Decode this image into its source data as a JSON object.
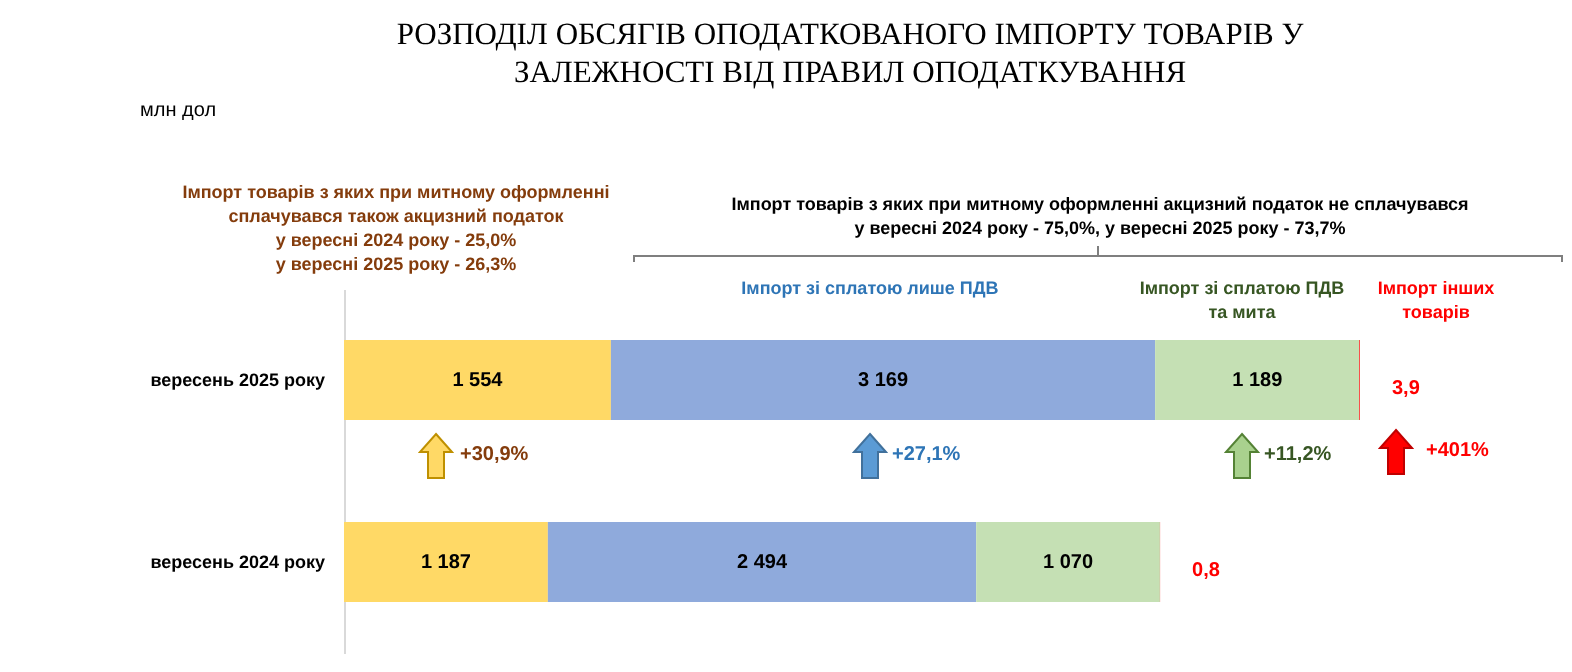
{
  "chart_data": {
    "type": "bar",
    "orientation": "horizontal",
    "stacked": true,
    "title": "РОЗПОДІЛ ОБСЯГІВ ОПОДАТКОВАНОГО ІМПОРТУ ТОВАРІВ У ЗАЛЕЖНОСТІ ВІД ПРАВИЛ ОПОДАТКУВАННЯ",
    "subtitle": "млн дол",
    "categories": [
      "вересень 2025 року",
      "вересень 2024 року"
    ],
    "series": [
      {
        "color": "#ffd966",
        "values": [
          1554,
          1187
        ],
        "value_labels": [
          "1 554",
          "1 187"
        ]
      },
      {
        "name": "Імпорт зі сплатою лише ПДВ",
        "color": "#8faadc",
        "values": [
          3169,
          2494
        ],
        "value_labels": [
          "3 169",
          "2 494"
        ]
      },
      {
        "name": "Імпорт зі сплатою ПДВ та мита",
        "color": "#c5e0b4",
        "values": [
          1189,
          1070
        ],
        "value_labels": [
          "1 189",
          "1 070"
        ]
      },
      {
        "name": "Імпорт інших товарів",
        "color": "#ff0000",
        "values": [
          3.9,
          0.8
        ],
        "value_labels": [
          "3,9",
          "0,8"
        ]
      }
    ],
    "tick_labels": "y",
    "annotations": [
      "Імпорт товарів з яких при митному оформленні\nсплачувався також акцизний податок\nу вересні 2024 року - 25,0%\nу вересні 2025 року - 26,3%",
      "Імпорт товарів  з яких при митному оформленні акцизний податок не сплачувався\nу вересні 2024 року  - 75,0%, у вересні 2025 року - 73,7%",
      "+30,9%",
      "+27,1%",
      "+11,2%",
      "+401%"
    ]
  }
}
